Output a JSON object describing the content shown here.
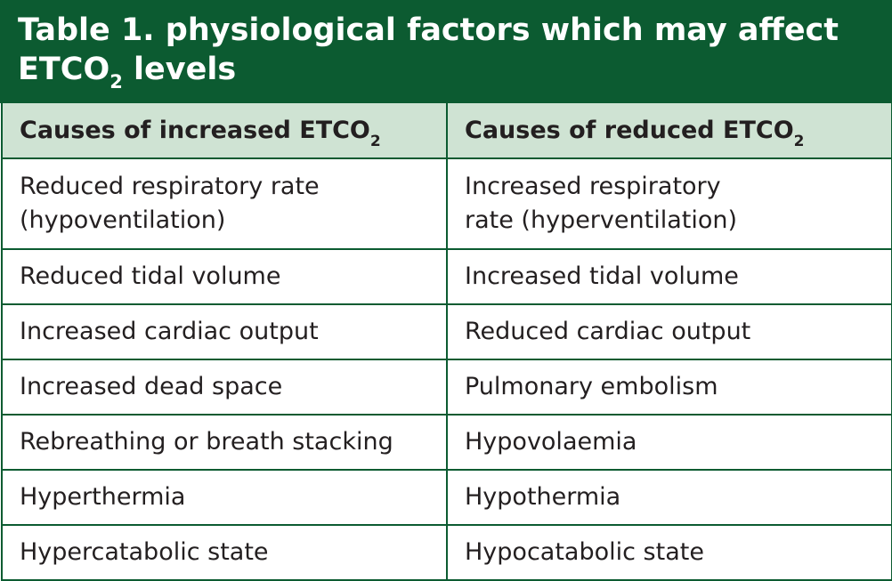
{
  "title": {
    "line1": "Table 1.  physiological factors which may affect",
    "line2_prefix": "ETCO",
    "line2_sub": "2",
    "line2_suffix": " levels"
  },
  "headers": [
    {
      "prefix": "Causes of increased ETCO",
      "sub": "2"
    },
    {
      "prefix": "Causes of reduced ETCO",
      "sub": "2"
    }
  ],
  "rows": [
    [
      "Reduced respiratory rate (hypoventilation)",
      "Increased respiratory rate (hyperventilation)"
    ],
    [
      "Reduced tidal volume",
      "Increased tidal volume"
    ],
    [
      "Increased cardiac output",
      "Reduced cardiac output"
    ],
    [
      "Increased dead space",
      "Pulmonary embolism"
    ],
    [
      "Rebreathing or breath stacking",
      "Hypovolaemia"
    ],
    [
      "Hyperthermia",
      "Hypothermia"
    ],
    [
      "Hypercatabolic state",
      "Hypocatabolic state"
    ]
  ],
  "colors": {
    "title_bg": "#0c5b31",
    "header_bg": "#cfe3d3",
    "border": "#0c5b31",
    "text": "#231f20"
  }
}
